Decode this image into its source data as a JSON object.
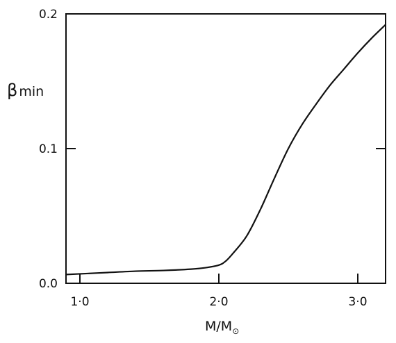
{
  "chart_data": {
    "type": "line",
    "title": "",
    "xlabel": "M/M",
    "xlabel_symbol": "⊙",
    "ylabel_main": "β",
    "ylabel_sub": "min",
    "xlim": [
      0.9,
      3.2
    ],
    "ylim": [
      0.0,
      0.2
    ],
    "x_ticks": [
      1.0,
      2.0,
      3.0
    ],
    "x_tick_labels": [
      "1·0",
      "2·0",
      "3·0"
    ],
    "y_ticks": [
      0.0,
      0.1,
      0.2
    ],
    "y_tick_labels": [
      "0.0",
      "0.1",
      "0.2"
    ],
    "grid": false,
    "legend": "none",
    "series": [
      {
        "values": [
          [
            0.9,
            0.0065
          ],
          [
            1.0,
            0.007
          ],
          [
            1.2,
            0.008
          ],
          [
            1.4,
            0.009
          ],
          [
            1.6,
            0.0095
          ],
          [
            1.8,
            0.0105
          ],
          [
            1.9,
            0.0115
          ],
          [
            2.0,
            0.0135
          ],
          [
            2.05,
            0.0165
          ],
          [
            2.1,
            0.022
          ],
          [
            2.2,
            0.035
          ],
          [
            2.3,
            0.055
          ],
          [
            2.4,
            0.078
          ],
          [
            2.5,
            0.1
          ],
          [
            2.6,
            0.118
          ],
          [
            2.7,
            0.133
          ],
          [
            2.8,
            0.147
          ],
          [
            2.9,
            0.159
          ],
          [
            3.0,
            0.171
          ],
          [
            3.1,
            0.182
          ],
          [
            3.2,
            0.192
          ]
        ]
      }
    ]
  }
}
